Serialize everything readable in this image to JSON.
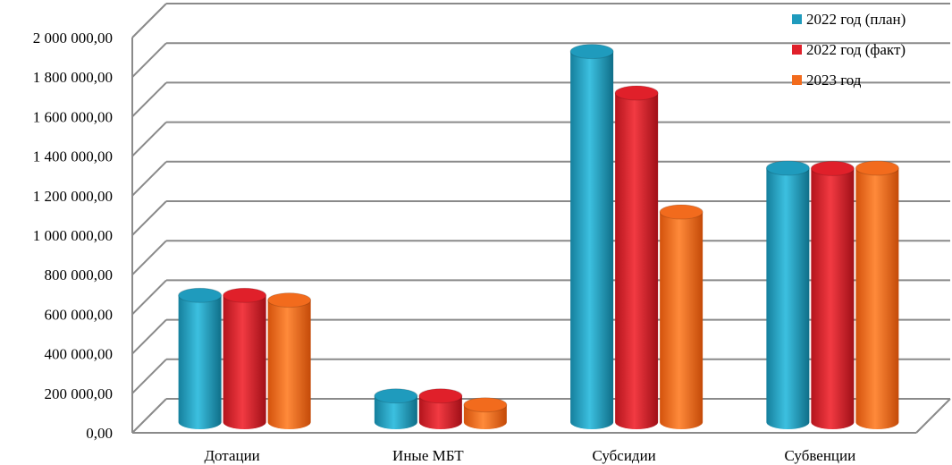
{
  "chart_data": {
    "type": "bar",
    "categories": [
      "Дотации",
      "Иные МБТ",
      "Субсидии",
      "Субвенции"
    ],
    "series": [
      {
        "name": "2022 год (план)",
        "color": "#1f9bbd",
        "values": [
          596000,
          87000,
          1830000,
          1240000
        ]
      },
      {
        "name": "2022 год (факт)",
        "color": "#e0202a",
        "values": [
          596000,
          87000,
          1620000,
          1238000
        ]
      },
      {
        "name": "2023 год",
        "color": "#f26b1d",
        "values": [
          572000,
          42000,
          1018000,
          1240000
        ]
      }
    ],
    "yticks": [
      "0,00",
      "200 000,00",
      "400 000,00",
      "600 000,00",
      "800 000,00",
      "1 000 000,00",
      "1 200 000,00",
      "1 400 000,00",
      "1 600 000,00",
      "1 800 000,00",
      "2 000 000,00"
    ],
    "ylim": [
      0,
      2000000
    ],
    "grid": true,
    "legend": "top-right"
  }
}
